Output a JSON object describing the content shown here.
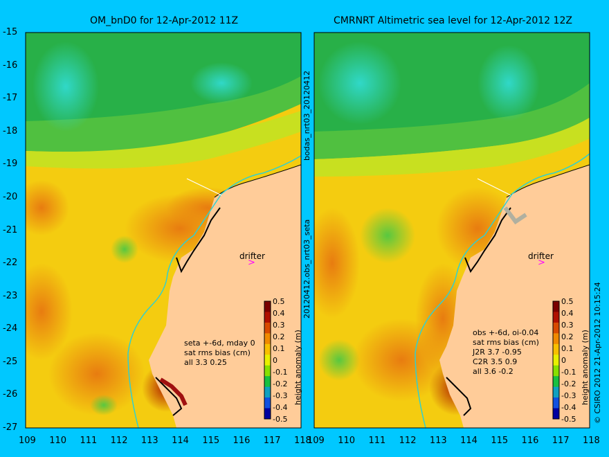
{
  "left_panel": {
    "title": "OM_bnD0 for 12-Apr-2012 11Z",
    "drifter_label": "drifter",
    "stats_lines": [
      "seta +-6d, mday 0",
      "sat rms bias (cm)",
      "all 3.3 0.25"
    ]
  },
  "right_panel": {
    "title": "CMRNRT Altimetric sea level  for 12-Apr-2012 12Z",
    "drifter_label": "drifter",
    "stats_lines": [
      "obs +-6d, oi-0.04",
      "sat rms bias (cm)",
      "J2R   3.7 -0.95",
      "C2R   3.5 0.9",
      "all 3.6 -0.2"
    ]
  },
  "y_ticks": [
    "-15",
    "-16",
    "-17",
    "-18",
    "-19",
    "-20",
    "-21",
    "-22",
    "-23",
    "-24",
    "-25",
    "-26",
    "-27"
  ],
  "x_ticks": [
    "109",
    "110",
    "111",
    "112",
    "113",
    "114",
    "115",
    "116",
    "117",
    "118"
  ],
  "colorbar": {
    "label": "height anomaly (m)",
    "ticks": [
      "0.5",
      "0.4",
      "0.3",
      "0.2",
      "0.1",
      "0",
      "-0.1",
      "-0.2",
      "-0.3",
      "-0.4",
      "-0.5"
    ],
    "colors": [
      "#7a0000",
      "#b01000",
      "#d84a00",
      "#f08a00",
      "#f8c000",
      "#e8f000",
      "#88e000",
      "#18c040",
      "#10a0c0",
      "#1050e0",
      "#0000a0"
    ]
  },
  "vertical_labels": {
    "middle_top": "bodas_nrt03_20120412",
    "middle_bottom": "20120412.obs_nrt03_seta",
    "right_edge": "© CSIRO 2012   21-Apr-2012 10:15:24"
  },
  "colors": {
    "background": "#00c8ff",
    "land": "#ffcc99",
    "drifter_marker": "#ff00ff",
    "shelf_contour": "#30d0d0"
  }
}
